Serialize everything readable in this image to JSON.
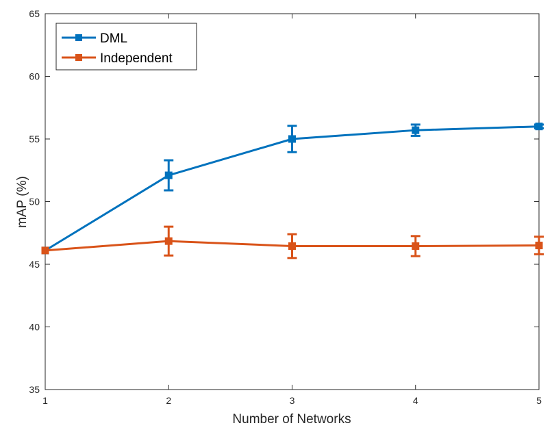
{
  "chart_data": {
    "type": "line",
    "title": "",
    "xlabel": "Number of Networks",
    "ylabel": "mAP (%)",
    "x": [
      1,
      2,
      3,
      4,
      5
    ],
    "xlim": [
      1,
      5
    ],
    "ylim": [
      35,
      65
    ],
    "xticks": [
      "1",
      "2",
      "3",
      "4",
      "5"
    ],
    "yticks": [
      "35",
      "40",
      "45",
      "50",
      "55",
      "60",
      "65"
    ],
    "grid": false,
    "legend_position": "top-left",
    "series": [
      {
        "name": "DML",
        "color": "#0072BD",
        "values": [
          46.1,
          52.1,
          55.0,
          55.7,
          56.0
        ],
        "errors": [
          0.0,
          1.2,
          1.05,
          0.45,
          0.15
        ]
      },
      {
        "name": "Independent",
        "color": "#D95319",
        "values": [
          46.1,
          46.85,
          46.45,
          46.45,
          46.5
        ],
        "errors": [
          0.0,
          1.15,
          0.95,
          0.8,
          0.7
        ]
      }
    ]
  }
}
